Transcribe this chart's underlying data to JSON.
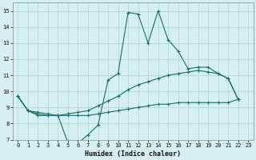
{
  "xlabel": "Humidex (Indice chaleur)",
  "background_color": "#d6eff0",
  "grid_color": "#b8d8d8",
  "line_color": "#1a6e6a",
  "xlim": [
    -0.5,
    23.5
  ],
  "ylim": [
    7,
    15.5
  ],
  "xticks": [
    0,
    1,
    2,
    3,
    4,
    5,
    6,
    7,
    8,
    9,
    10,
    11,
    12,
    13,
    14,
    15,
    16,
    17,
    18,
    19,
    20,
    21,
    22,
    23
  ],
  "yticks": [
    7,
    8,
    9,
    10,
    11,
    12,
    13,
    14,
    15
  ],
  "line1_x": [
    0,
    1,
    2,
    3,
    4,
    5,
    6,
    7,
    8,
    9,
    10,
    11,
    12,
    13,
    14,
    15,
    16,
    17,
    18,
    19,
    20,
    21,
    22
  ],
  "line1_y": [
    9.7,
    8.8,
    8.5,
    8.5,
    8.5,
    6.8,
    6.8,
    7.3,
    7.9,
    10.7,
    11.1,
    14.9,
    14.8,
    13.0,
    15.0,
    13.2,
    12.5,
    11.4,
    11.5,
    11.5,
    11.1,
    10.8,
    9.5
  ],
  "line2_x": [
    0,
    1,
    2,
    3,
    4,
    5,
    6,
    7,
    8,
    9,
    10,
    11,
    12,
    13,
    14,
    15,
    16,
    17,
    18,
    19,
    20,
    21,
    22
  ],
  "line2_y": [
    9.7,
    8.8,
    8.7,
    8.6,
    8.5,
    8.6,
    8.7,
    8.8,
    9.1,
    9.4,
    9.7,
    10.1,
    10.4,
    10.6,
    10.8,
    11.0,
    11.1,
    11.2,
    11.3,
    11.2,
    11.1,
    10.8,
    9.5
  ],
  "line3_x": [
    0,
    1,
    2,
    3,
    4,
    5,
    6,
    7,
    8,
    9,
    10,
    11,
    12,
    13,
    14,
    15,
    16,
    17,
    18,
    19,
    20,
    21,
    22
  ],
  "line3_y": [
    9.7,
    8.8,
    8.6,
    8.5,
    8.5,
    8.5,
    8.5,
    8.5,
    8.6,
    8.7,
    8.8,
    8.9,
    9.0,
    9.1,
    9.2,
    9.2,
    9.3,
    9.3,
    9.3,
    9.3,
    9.3,
    9.3,
    9.5
  ]
}
